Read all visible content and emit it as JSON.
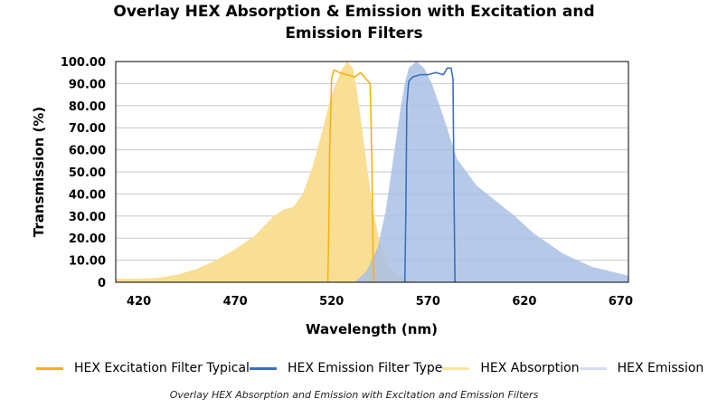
{
  "chart_data": {
    "type": "area",
    "title": "Overlay HEX Absorption & Emission with Excitation and Emission Filters",
    "xlabel": "Wavelength (nm)",
    "ylabel": "Transmission (%)",
    "xlim": [
      408,
      674
    ],
    "ylim": [
      0,
      100
    ],
    "x_ticks": [
      "420",
      "470",
      "520",
      "570",
      "620",
      "670"
    ],
    "y_ticks": [
      "0",
      "10.00",
      "20.00",
      "30.00",
      "40.00",
      "50.00",
      "60.00",
      "70.00",
      "80.00",
      "90.00",
      "100.00"
    ],
    "grid": "horizontal",
    "legend_position": "bottom",
    "series": [
      {
        "name": "HEX Absorption",
        "kind": "area",
        "color": "#f9df95",
        "x": [
          408,
          420,
          430,
          440,
          450,
          460,
          470,
          480,
          490,
          495,
          500,
          505,
          510,
          515,
          520,
          525,
          528,
          531,
          533,
          535,
          538,
          541,
          545,
          550,
          555,
          560,
          565
        ],
        "y": [
          1.5,
          1.6,
          2,
          3.5,
          6,
          10,
          15,
          21,
          30,
          33,
          34,
          40,
          52,
          68,
          85,
          96,
          100,
          97,
          88,
          75,
          55,
          35,
          18,
          7,
          3,
          1,
          0
        ]
      },
      {
        "name": "HEX Emission",
        "kind": "area",
        "color": "#a9bfe5",
        "x": [
          532,
          538,
          544,
          548,
          551,
          554,
          556,
          558,
          560,
          564,
          568,
          572,
          578,
          585,
          595,
          605,
          615,
          625,
          640,
          655,
          674
        ],
        "y": [
          0,
          5,
          16,
          32,
          50,
          68,
          80,
          90,
          97,
          100,
          97,
          90,
          75,
          56,
          44,
          37,
          30,
          22,
          13,
          7,
          3
        ]
      },
      {
        "name": "HEX Excitation Filter Typical",
        "kind": "line",
        "color": "#f5b40d",
        "x": [
          518,
          518.5,
          519,
          520,
          521,
          522,
          524,
          528,
          532,
          535,
          538,
          540,
          541,
          541.5,
          542
        ],
        "y": [
          0,
          20,
          60,
          92,
          96,
          96,
          95,
          94,
          93,
          95,
          92,
          90,
          50,
          10,
          0
        ]
      },
      {
        "name": "HEX Emission Filter Type",
        "kind": "line",
        "color": "#3d6fbe",
        "x": [
          558,
          558.5,
          559,
          560,
          562,
          566,
          570,
          574,
          578,
          580,
          582,
          583,
          583.5,
          584
        ],
        "y": [
          0,
          30,
          80,
          91,
          93,
          94,
          94,
          95,
          94,
          97,
          97,
          92,
          40,
          0
        ]
      }
    ],
    "legend": [
      {
        "name": "HEX Excitation Filter Typical",
        "color": "#f5b40d"
      },
      {
        "name": "HEX Emission Filter Type",
        "color": "#3d6fbe"
      },
      {
        "name": "HEX Absorption",
        "color": "#fbe4a0"
      },
      {
        "name": "HEX Emission",
        "color": "#d4deee"
      }
    ],
    "caption": "Overlay HEX Absorption and Emission with Excitation and Emission Filters"
  }
}
